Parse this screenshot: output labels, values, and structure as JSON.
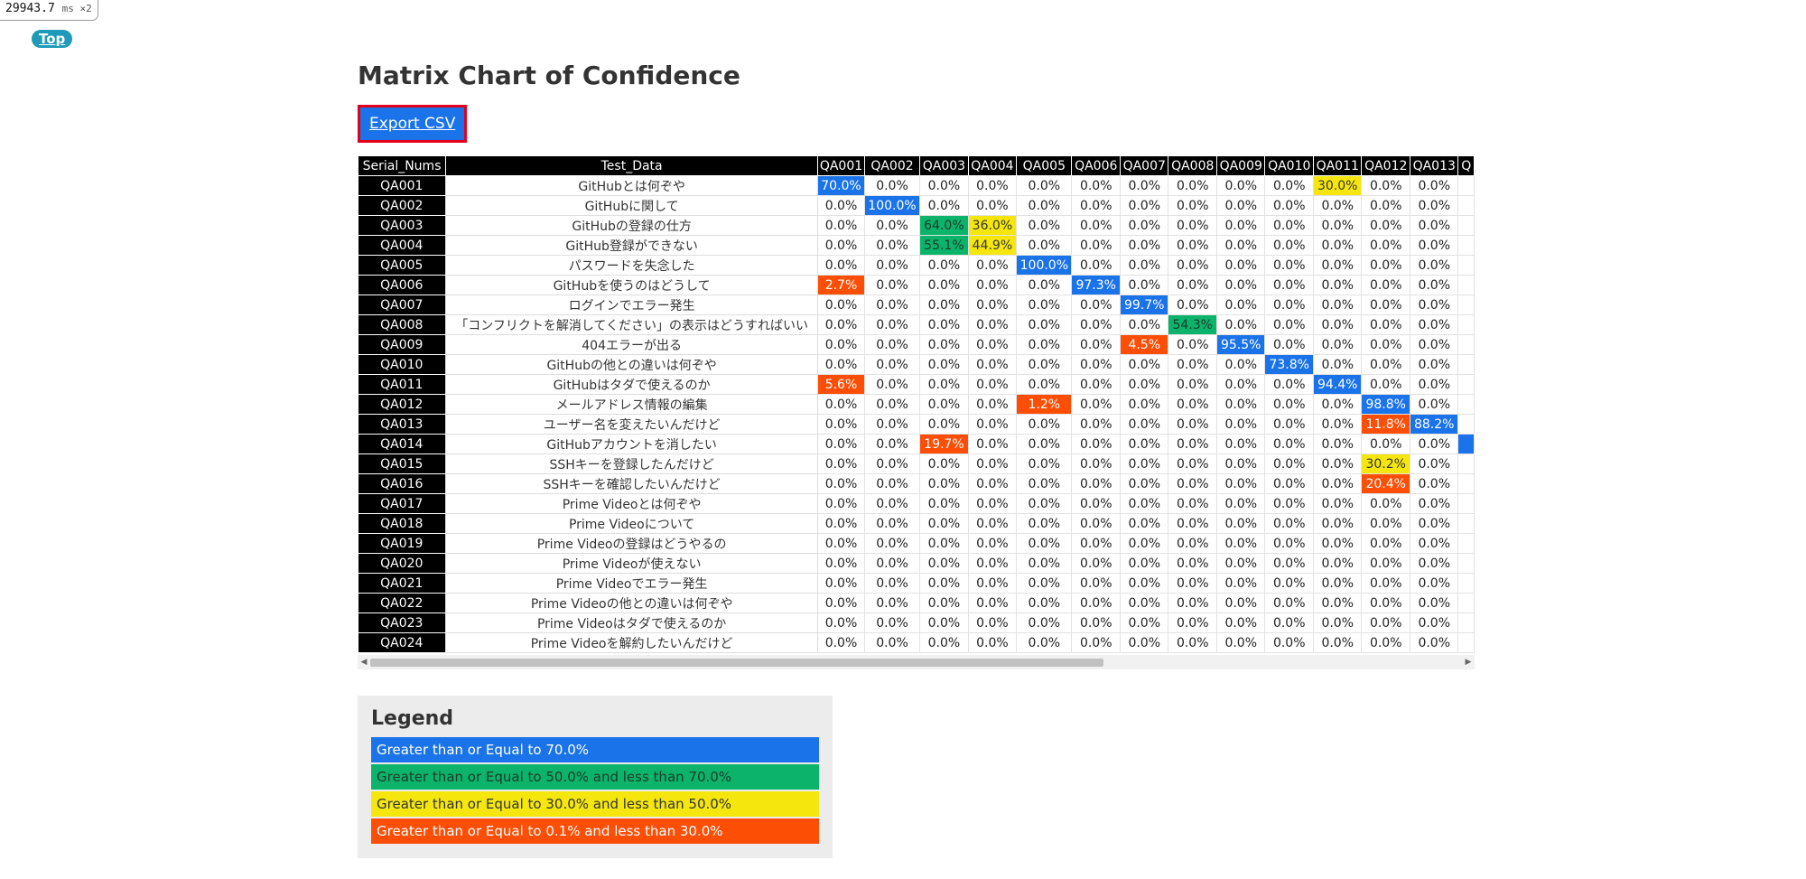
{
  "timer": {
    "value": "29943.7",
    "unit": "ms ×2"
  },
  "nav": {
    "top_label": "Top"
  },
  "page": {
    "title": "Matrix Chart of Confidence",
    "export_label": "Export CSV"
  },
  "table": {
    "header_serial": "Serial_Nums",
    "header_test": "Test_Data",
    "columns": [
      "QA001",
      "QA002",
      "QA003",
      "QA004",
      "QA005",
      "QA006",
      "QA007",
      "QA008",
      "QA009",
      "QA010",
      "QA011",
      "QA012",
      "QA013",
      "Q"
    ],
    "rows": [
      {
        "serial": "QA001",
        "test": "GitHubとは何ぞや",
        "values": [
          "70.0%",
          "0.0%",
          "0.0%",
          "0.0%",
          "0.0%",
          "0.0%",
          "0.0%",
          "0.0%",
          "0.0%",
          "0.0%",
          "30.0%",
          "0.0%",
          "0.0%",
          ""
        ],
        "colors": [
          "blue",
          "",
          "",
          "",
          "",
          "",
          "",
          "",
          "",
          "",
          "yellow",
          "",
          "",
          ""
        ]
      },
      {
        "serial": "QA002",
        "test": "GitHubに関して",
        "values": [
          "0.0%",
          "100.0%",
          "0.0%",
          "0.0%",
          "0.0%",
          "0.0%",
          "0.0%",
          "0.0%",
          "0.0%",
          "0.0%",
          "0.0%",
          "0.0%",
          "0.0%",
          ""
        ],
        "colors": [
          "",
          "blue",
          "",
          "",
          "",
          "",
          "",
          "",
          "",
          "",
          "",
          "",
          "",
          ""
        ]
      },
      {
        "serial": "QA003",
        "test": "GitHubの登録の仕方",
        "values": [
          "0.0%",
          "0.0%",
          "64.0%",
          "36.0%",
          "0.0%",
          "0.0%",
          "0.0%",
          "0.0%",
          "0.0%",
          "0.0%",
          "0.0%",
          "0.0%",
          "0.0%",
          ""
        ],
        "colors": [
          "",
          "",
          "green",
          "yellow",
          "",
          "",
          "",
          "",
          "",
          "",
          "",
          "",
          "",
          ""
        ]
      },
      {
        "serial": "QA004",
        "test": "GitHub登録ができない",
        "values": [
          "0.0%",
          "0.0%",
          "55.1%",
          "44.9%",
          "0.0%",
          "0.0%",
          "0.0%",
          "0.0%",
          "0.0%",
          "0.0%",
          "0.0%",
          "0.0%",
          "0.0%",
          ""
        ],
        "colors": [
          "",
          "",
          "green",
          "yellow",
          "",
          "",
          "",
          "",
          "",
          "",
          "",
          "",
          "",
          ""
        ]
      },
      {
        "serial": "QA005",
        "test": "パスワードを失念した",
        "values": [
          "0.0%",
          "0.0%",
          "0.0%",
          "0.0%",
          "100.0%",
          "0.0%",
          "0.0%",
          "0.0%",
          "0.0%",
          "0.0%",
          "0.0%",
          "0.0%",
          "0.0%",
          ""
        ],
        "colors": [
          "",
          "",
          "",
          "",
          "blue",
          "",
          "",
          "",
          "",
          "",
          "",
          "",
          "",
          ""
        ]
      },
      {
        "serial": "QA006",
        "test": "GitHubを使うのはどうして",
        "values": [
          "2.7%",
          "0.0%",
          "0.0%",
          "0.0%",
          "0.0%",
          "97.3%",
          "0.0%",
          "0.0%",
          "0.0%",
          "0.0%",
          "0.0%",
          "0.0%",
          "0.0%",
          ""
        ],
        "colors": [
          "red",
          "",
          "",
          "",
          "",
          "blue",
          "",
          "",
          "",
          "",
          "",
          "",
          "",
          ""
        ]
      },
      {
        "serial": "QA007",
        "test": "ログインでエラー発生",
        "values": [
          "0.0%",
          "0.0%",
          "0.0%",
          "0.0%",
          "0.0%",
          "0.0%",
          "99.7%",
          "0.0%",
          "0.0%",
          "0.0%",
          "0.0%",
          "0.0%",
          "0.0%",
          ""
        ],
        "colors": [
          "",
          "",
          "",
          "",
          "",
          "",
          "blue",
          "",
          "",
          "",
          "",
          "",
          "",
          ""
        ]
      },
      {
        "serial": "QA008",
        "test": "「コンフリクトを解消してください」の表示はどうすればいい",
        "values": [
          "0.0%",
          "0.0%",
          "0.0%",
          "0.0%",
          "0.0%",
          "0.0%",
          "0.0%",
          "54.3%",
          "0.0%",
          "0.0%",
          "0.0%",
          "0.0%",
          "0.0%",
          ""
        ],
        "colors": [
          "",
          "",
          "",
          "",
          "",
          "",
          "",
          "green",
          "",
          "",
          "",
          "",
          "",
          ""
        ]
      },
      {
        "serial": "QA009",
        "test": "404エラーが出る",
        "values": [
          "0.0%",
          "0.0%",
          "0.0%",
          "0.0%",
          "0.0%",
          "0.0%",
          "4.5%",
          "0.0%",
          "95.5%",
          "0.0%",
          "0.0%",
          "0.0%",
          "0.0%",
          ""
        ],
        "colors": [
          "",
          "",
          "",
          "",
          "",
          "",
          "red",
          "",
          "blue",
          "",
          "",
          "",
          "",
          ""
        ]
      },
      {
        "serial": "QA010",
        "test": "GitHubの他との違いは何ぞや",
        "values": [
          "0.0%",
          "0.0%",
          "0.0%",
          "0.0%",
          "0.0%",
          "0.0%",
          "0.0%",
          "0.0%",
          "0.0%",
          "73.8%",
          "0.0%",
          "0.0%",
          "0.0%",
          ""
        ],
        "colors": [
          "",
          "",
          "",
          "",
          "",
          "",
          "",
          "",
          "",
          "blue",
          "",
          "",
          "",
          ""
        ]
      },
      {
        "serial": "QA011",
        "test": "GitHubはタダで使えるのか",
        "values": [
          "5.6%",
          "0.0%",
          "0.0%",
          "0.0%",
          "0.0%",
          "0.0%",
          "0.0%",
          "0.0%",
          "0.0%",
          "0.0%",
          "94.4%",
          "0.0%",
          "0.0%",
          ""
        ],
        "colors": [
          "red",
          "",
          "",
          "",
          "",
          "",
          "",
          "",
          "",
          "",
          "blue",
          "",
          "",
          ""
        ]
      },
      {
        "serial": "QA012",
        "test": "メールアドレス情報の編集",
        "values": [
          "0.0%",
          "0.0%",
          "0.0%",
          "0.0%",
          "1.2%",
          "0.0%",
          "0.0%",
          "0.0%",
          "0.0%",
          "0.0%",
          "0.0%",
          "98.8%",
          "0.0%",
          ""
        ],
        "colors": [
          "",
          "",
          "",
          "",
          "red",
          "",
          "",
          "",
          "",
          "",
          "",
          "blue",
          "",
          ""
        ]
      },
      {
        "serial": "QA013",
        "test": "ユーザー名を変えたいんだけど",
        "values": [
          "0.0%",
          "0.0%",
          "0.0%",
          "0.0%",
          "0.0%",
          "0.0%",
          "0.0%",
          "0.0%",
          "0.0%",
          "0.0%",
          "0.0%",
          "11.8%",
          "88.2%",
          ""
        ],
        "colors": [
          "",
          "",
          "",
          "",
          "",
          "",
          "",
          "",
          "",
          "",
          "",
          "red",
          "blue",
          ""
        ]
      },
      {
        "serial": "QA014",
        "test": "GitHubアカウントを消したい",
        "values": [
          "0.0%",
          "0.0%",
          "19.7%",
          "0.0%",
          "0.0%",
          "0.0%",
          "0.0%",
          "0.0%",
          "0.0%",
          "0.0%",
          "0.0%",
          "0.0%",
          "0.0%",
          ""
        ],
        "colors": [
          "",
          "",
          "red",
          "",
          "",
          "",
          "",
          "",
          "",
          "",
          "",
          "",
          "",
          "blue"
        ]
      },
      {
        "serial": "QA015",
        "test": "SSHキーを登録したんだけど",
        "values": [
          "0.0%",
          "0.0%",
          "0.0%",
          "0.0%",
          "0.0%",
          "0.0%",
          "0.0%",
          "0.0%",
          "0.0%",
          "0.0%",
          "0.0%",
          "30.2%",
          "0.0%",
          ""
        ],
        "colors": [
          "",
          "",
          "",
          "",
          "",
          "",
          "",
          "",
          "",
          "",
          "",
          "yellow",
          "",
          ""
        ]
      },
      {
        "serial": "QA016",
        "test": "SSHキーを確認したいんだけど",
        "values": [
          "0.0%",
          "0.0%",
          "0.0%",
          "0.0%",
          "0.0%",
          "0.0%",
          "0.0%",
          "0.0%",
          "0.0%",
          "0.0%",
          "0.0%",
          "20.4%",
          "0.0%",
          ""
        ],
        "colors": [
          "",
          "",
          "",
          "",
          "",
          "",
          "",
          "",
          "",
          "",
          "",
          "red",
          "",
          ""
        ]
      },
      {
        "serial": "QA017",
        "test": "Prime Videoとは何ぞや",
        "values": [
          "0.0%",
          "0.0%",
          "0.0%",
          "0.0%",
          "0.0%",
          "0.0%",
          "0.0%",
          "0.0%",
          "0.0%",
          "0.0%",
          "0.0%",
          "0.0%",
          "0.0%",
          ""
        ],
        "colors": []
      },
      {
        "serial": "QA018",
        "test": "Prime Videoについて",
        "values": [
          "0.0%",
          "0.0%",
          "0.0%",
          "0.0%",
          "0.0%",
          "0.0%",
          "0.0%",
          "0.0%",
          "0.0%",
          "0.0%",
          "0.0%",
          "0.0%",
          "0.0%",
          ""
        ],
        "colors": []
      },
      {
        "serial": "QA019",
        "test": "Prime Videoの登録はどうやるの",
        "values": [
          "0.0%",
          "0.0%",
          "0.0%",
          "0.0%",
          "0.0%",
          "0.0%",
          "0.0%",
          "0.0%",
          "0.0%",
          "0.0%",
          "0.0%",
          "0.0%",
          "0.0%",
          ""
        ],
        "colors": []
      },
      {
        "serial": "QA020",
        "test": "Prime Videoが使えない",
        "values": [
          "0.0%",
          "0.0%",
          "0.0%",
          "0.0%",
          "0.0%",
          "0.0%",
          "0.0%",
          "0.0%",
          "0.0%",
          "0.0%",
          "0.0%",
          "0.0%",
          "0.0%",
          ""
        ],
        "colors": []
      },
      {
        "serial": "QA021",
        "test": "Prime Videoでエラー発生",
        "values": [
          "0.0%",
          "0.0%",
          "0.0%",
          "0.0%",
          "0.0%",
          "0.0%",
          "0.0%",
          "0.0%",
          "0.0%",
          "0.0%",
          "0.0%",
          "0.0%",
          "0.0%",
          ""
        ],
        "colors": []
      },
      {
        "serial": "QA022",
        "test": "Prime Videoの他との違いは何ぞや",
        "values": [
          "0.0%",
          "0.0%",
          "0.0%",
          "0.0%",
          "0.0%",
          "0.0%",
          "0.0%",
          "0.0%",
          "0.0%",
          "0.0%",
          "0.0%",
          "0.0%",
          "0.0%",
          ""
        ],
        "colors": []
      },
      {
        "serial": "QA023",
        "test": "Prime Videoはタダで使えるのか",
        "values": [
          "0.0%",
          "0.0%",
          "0.0%",
          "0.0%",
          "0.0%",
          "0.0%",
          "0.0%",
          "0.0%",
          "0.0%",
          "0.0%",
          "0.0%",
          "0.0%",
          "0.0%",
          ""
        ],
        "colors": []
      },
      {
        "serial": "QA024",
        "test": "Prime Videoを解約したいんだけど",
        "values": [
          "0.0%",
          "0.0%",
          "0.0%",
          "0.0%",
          "0.0%",
          "0.0%",
          "0.0%",
          "0.0%",
          "0.0%",
          "0.0%",
          "0.0%",
          "0.0%",
          "0.0%",
          ""
        ],
        "colors": []
      }
    ]
  },
  "legend": {
    "title": "Legend",
    "items": [
      {
        "label": "Greater than or Equal to 70.0%",
        "color": "#1a73e8",
        "text_color": "#ffffff"
      },
      {
        "label": "Greater than or Equal to 50.0% and less than 70.0%",
        "color": "#0bb46a",
        "text_color": "#1a3a2a"
      },
      {
        "label": "Greater than or Equal to 30.0% and less than 50.0%",
        "color": "#f5e70e",
        "text_color": "#333333"
      },
      {
        "label": "Greater than or Equal to 0.1% and less than 30.0%",
        "color": "#fc4e05",
        "text_color": "#ffffff"
      }
    ]
  }
}
